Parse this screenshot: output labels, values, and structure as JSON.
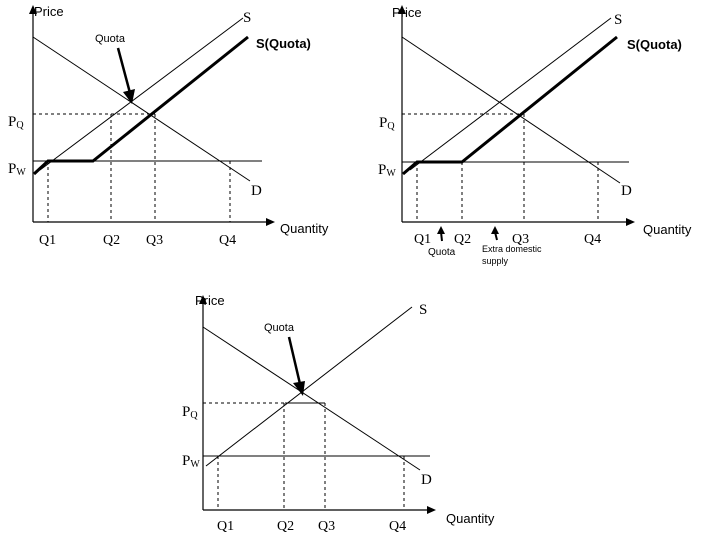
{
  "panel1": {
    "price": "Price",
    "quantity": "Quantity",
    "s": "S",
    "s_quota": "S(Quota)",
    "d": "D",
    "pq": "P",
    "pq_sub": "Q",
    "pw": "P",
    "pw_sub": "W",
    "quota": "Quota",
    "q1": "Q1",
    "q2": "Q2",
    "q3": "Q3",
    "q4": "Q4"
  },
  "panel2": {
    "price": "Price",
    "quantity": "Quantity",
    "s": "S",
    "s_quota": "S(Quota)",
    "d": "D",
    "pq": "P",
    "pq_sub": "Q",
    "pw": "P",
    "pw_sub": "W",
    "q1": "Q1",
    "q2": "Q2",
    "q3": "Q3",
    "q4": "Q4",
    "quota_note": "Quota",
    "extra_line1": "Extra domestic",
    "extra_line2": "supply"
  },
  "panel3": {
    "price": "Price",
    "quantity": "Quantity",
    "s": "S",
    "d": "D",
    "pq": "P",
    "pq_sub": "Q",
    "pw": "P",
    "pw_sub": "W",
    "quota": "Quota",
    "q1": "Q1",
    "q2": "Q2",
    "q3": "Q3",
    "q4": "Q4"
  }
}
